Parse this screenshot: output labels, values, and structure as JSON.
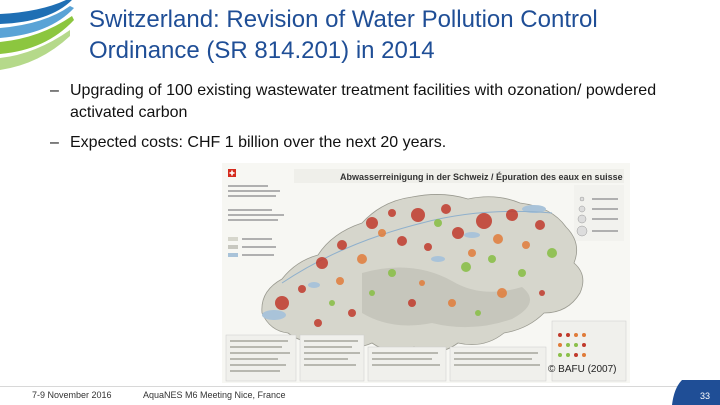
{
  "slide": {
    "title": "Switzerland: Revision of Water Pollution Control Ordinance (SR 814.201) in 2014",
    "bullets": [
      "Upgrading of 100 existing wastewater treatment facilities with ozonation/ powdered activated carbon",
      "Expected costs: CHF 1 billion over the next 20 years."
    ],
    "bullet_marker": "–",
    "image_credit": "© BAFU (2007)",
    "footer_date": "7-9 November 2016",
    "footer_event": "AquaNES M6 Meeting Nice, France",
    "page_number": "33"
  },
  "map": {
    "title": "Abwasserreinigung in der Schweiz / Épuration des eaux en suisse",
    "colors": {
      "land": "#d6d6cc",
      "lakes": "#a9c3d9",
      "large_plant": "#c0392b",
      "medium_plant": "#e07b39",
      "small_plant": "#8bbf4a"
    }
  },
  "theme": {
    "title_color": "#1f4e96",
    "badge_color": "#1f4e96"
  }
}
